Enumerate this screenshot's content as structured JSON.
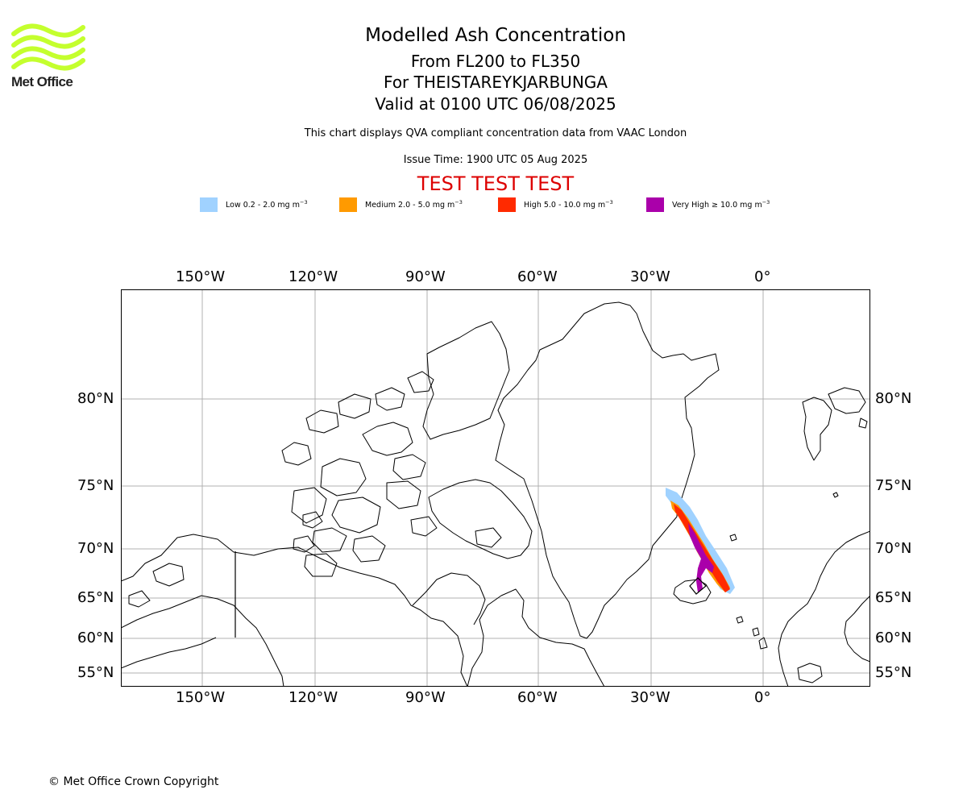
{
  "logo": {
    "text": "Met Office",
    "color": "#c4ff2e"
  },
  "title": {
    "main": "Modelled Ash Concentration",
    "levels": "From FL200 to FL350",
    "volcano": "For THEISTAREYKJARBUNGA",
    "valid": "Valid at 0100 UTC 06/08/2025"
  },
  "subtitle": "This chart displays QVA compliant concentration data from VAAC London",
  "issue_time": "Issue Time: 1900 UTC 05 Aug 2025",
  "test_banner": "TEST TEST TEST",
  "legend": [
    {
      "label": "Low 0.2 - 2.0 mg m",
      "color": "#a0d2ff"
    },
    {
      "label": "Medium 2.0 - 5.0 mg m",
      "color": "#ff9a00"
    },
    {
      "label": "High 5.0 - 10.0 mg m",
      "color": "#ff2a00"
    },
    {
      "label": "Very High  ≥  10.0 mg m",
      "color": "#aa00aa"
    }
  ],
  "legend_unit_exponent": "−3",
  "axes": {
    "longitude_labels": [
      "150°W",
      "120°W",
      "90°W",
      "60°W",
      "30°W",
      "0°"
    ],
    "latitude_labels": [
      "80°N",
      "75°N",
      "70°N",
      "65°N",
      "60°N",
      "55°N"
    ]
  },
  "copyright": "© Met Office Crown Copyright"
}
